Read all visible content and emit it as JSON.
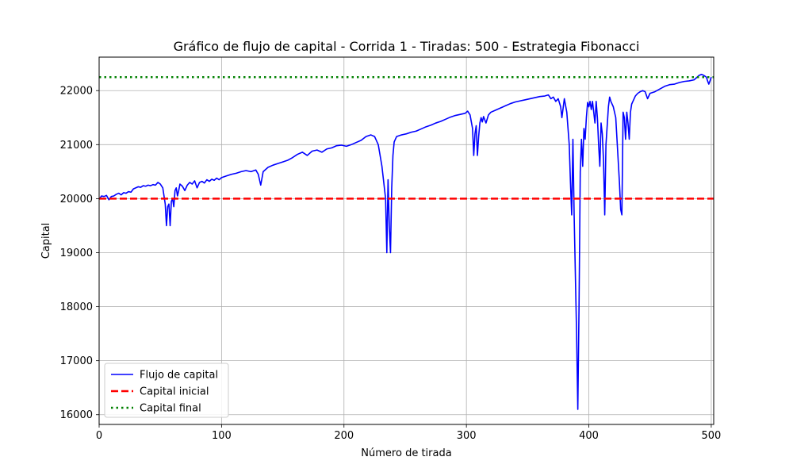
{
  "chart_data": {
    "type": "line",
    "title": "Gráfico de flujo de capital - Corrida 1 - Tiradas: 500 - Estrategia Fibonacci",
    "xlabel": "Número de tirada",
    "ylabel": "Capital",
    "xlim": [
      0,
      502
    ],
    "ylim": [
      15820,
      22620
    ],
    "xticks": [
      0,
      100,
      200,
      300,
      400,
      500
    ],
    "yticks": [
      16000,
      17000,
      18000,
      19000,
      20000,
      21000,
      22000
    ],
    "grid": true,
    "legend_position": "lower-left",
    "series": [
      {
        "name": "Flujo de capital",
        "color": "#0000ff",
        "style": "solid",
        "points": [
          [
            0,
            19990
          ],
          [
            2,
            20050
          ],
          [
            4,
            20040
          ],
          [
            6,
            20060
          ],
          [
            8,
            19980
          ],
          [
            10,
            20040
          ],
          [
            12,
            20050
          ],
          [
            14,
            20080
          ],
          [
            16,
            20100
          ],
          [
            18,
            20070
          ],
          [
            20,
            20110
          ],
          [
            22,
            20100
          ],
          [
            24,
            20130
          ],
          [
            26,
            20120
          ],
          [
            28,
            20180
          ],
          [
            30,
            20200
          ],
          [
            32,
            20220
          ],
          [
            34,
            20210
          ],
          [
            36,
            20240
          ],
          [
            38,
            20230
          ],
          [
            40,
            20250
          ],
          [
            42,
            20240
          ],
          [
            44,
            20260
          ],
          [
            46,
            20250
          ],
          [
            48,
            20300
          ],
          [
            50,
            20270
          ],
          [
            52,
            20200
          ],
          [
            54,
            19900
          ],
          [
            55,
            19500
          ],
          [
            56,
            19850
          ],
          [
            57,
            19900
          ],
          [
            58,
            19500
          ],
          [
            59,
            19950
          ],
          [
            60,
            20000
          ],
          [
            61,
            19850
          ],
          [
            62,
            20150
          ],
          [
            63,
            20200
          ],
          [
            64,
            20050
          ],
          [
            65,
            20150
          ],
          [
            66,
            20270
          ],
          [
            68,
            20230
          ],
          [
            70,
            20150
          ],
          [
            72,
            20250
          ],
          [
            74,
            20300
          ],
          [
            76,
            20270
          ],
          [
            78,
            20330
          ],
          [
            80,
            20200
          ],
          [
            82,
            20300
          ],
          [
            84,
            20320
          ],
          [
            86,
            20290
          ],
          [
            88,
            20350
          ],
          [
            90,
            20320
          ],
          [
            92,
            20360
          ],
          [
            94,
            20340
          ],
          [
            96,
            20380
          ],
          [
            98,
            20350
          ],
          [
            100,
            20390
          ],
          [
            104,
            20420
          ],
          [
            108,
            20450
          ],
          [
            112,
            20470
          ],
          [
            116,
            20500
          ],
          [
            120,
            20520
          ],
          [
            124,
            20500
          ],
          [
            128,
            20530
          ],
          [
            130,
            20450
          ],
          [
            132,
            20250
          ],
          [
            134,
            20500
          ],
          [
            138,
            20580
          ],
          [
            142,
            20620
          ],
          [
            146,
            20650
          ],
          [
            150,
            20680
          ],
          [
            154,
            20710
          ],
          [
            158,
            20760
          ],
          [
            162,
            20820
          ],
          [
            166,
            20860
          ],
          [
            170,
            20800
          ],
          [
            174,
            20880
          ],
          [
            178,
            20900
          ],
          [
            182,
            20860
          ],
          [
            186,
            20920
          ],
          [
            190,
            20940
          ],
          [
            194,
            20980
          ],
          [
            198,
            20990
          ],
          [
            202,
            20970
          ],
          [
            206,
            21000
          ],
          [
            210,
            21040
          ],
          [
            214,
            21080
          ],
          [
            218,
            21150
          ],
          [
            222,
            21180
          ],
          [
            225,
            21150
          ],
          [
            228,
            21000
          ],
          [
            231,
            20600
          ],
          [
            234,
            20000
          ],
          [
            235,
            19000
          ],
          [
            236,
            20350
          ],
          [
            237,
            19500
          ],
          [
            238,
            19000
          ],
          [
            239,
            20200
          ],
          [
            240,
            20800
          ],
          [
            241,
            21050
          ],
          [
            243,
            21150
          ],
          [
            247,
            21180
          ],
          [
            251,
            21200
          ],
          [
            255,
            21230
          ],
          [
            259,
            21250
          ],
          [
            263,
            21290
          ],
          [
            267,
            21330
          ],
          [
            271,
            21360
          ],
          [
            275,
            21400
          ],
          [
            279,
            21430
          ],
          [
            283,
            21470
          ],
          [
            287,
            21510
          ],
          [
            291,
            21540
          ],
          [
            295,
            21560
          ],
          [
            299,
            21580
          ],
          [
            301,
            21620
          ],
          [
            303,
            21550
          ],
          [
            305,
            21300
          ],
          [
            306,
            20800
          ],
          [
            307,
            21200
          ],
          [
            308,
            21350
          ],
          [
            309,
            20800
          ],
          [
            310,
            21150
          ],
          [
            311,
            21400
          ],
          [
            312,
            21500
          ],
          [
            313,
            21420
          ],
          [
            314,
            21520
          ],
          [
            316,
            21400
          ],
          [
            318,
            21550
          ],
          [
            320,
            21600
          ],
          [
            324,
            21640
          ],
          [
            328,
            21680
          ],
          [
            332,
            21720
          ],
          [
            336,
            21760
          ],
          [
            340,
            21790
          ],
          [
            344,
            21810
          ],
          [
            348,
            21830
          ],
          [
            352,
            21850
          ],
          [
            356,
            21870
          ],
          [
            360,
            21890
          ],
          [
            364,
            21900
          ],
          [
            367,
            21920
          ],
          [
            369,
            21850
          ],
          [
            371,
            21880
          ],
          [
            373,
            21800
          ],
          [
            375,
            21850
          ],
          [
            377,
            21700
          ],
          [
            378,
            21500
          ],
          [
            380,
            21850
          ],
          [
            382,
            21600
          ],
          [
            384,
            21000
          ],
          [
            385,
            20300
          ],
          [
            386,
            19700
          ],
          [
            387,
            21100
          ],
          [
            388,
            19700
          ],
          [
            390,
            17500
          ],
          [
            391,
            16100
          ],
          [
            392,
            18000
          ],
          [
            393,
            20500
          ],
          [
            394,
            21100
          ],
          [
            395,
            20600
          ],
          [
            396,
            21300
          ],
          [
            397,
            21100
          ],
          [
            398,
            21500
          ],
          [
            399,
            21780
          ],
          [
            400,
            21700
          ],
          [
            401,
            21800
          ],
          [
            402,
            21650
          ],
          [
            403,
            21800
          ],
          [
            404,
            21600
          ],
          [
            405,
            21400
          ],
          [
            406,
            21800
          ],
          [
            407,
            21500
          ],
          [
            408,
            21000
          ],
          [
            409,
            20600
          ],
          [
            410,
            21400
          ],
          [
            411,
            21200
          ],
          [
            412,
            20700
          ],
          [
            413,
            19700
          ],
          [
            414,
            21000
          ],
          [
            416,
            21700
          ],
          [
            417,
            21880
          ],
          [
            418,
            21800
          ],
          [
            420,
            21700
          ],
          [
            422,
            21500
          ],
          [
            423,
            21100
          ],
          [
            424,
            20700
          ],
          [
            425,
            20300
          ],
          [
            426,
            19800
          ],
          [
            427,
            19700
          ],
          [
            428,
            21600
          ],
          [
            429,
            21500
          ],
          [
            430,
            21100
          ],
          [
            431,
            21600
          ],
          [
            432,
            21400
          ],
          [
            433,
            21100
          ],
          [
            434,
            21600
          ],
          [
            435,
            21750
          ],
          [
            436,
            21800
          ],
          [
            438,
            21900
          ],
          [
            440,
            21950
          ],
          [
            442,
            21980
          ],
          [
            444,
            22000
          ],
          [
            446,
            21980
          ],
          [
            448,
            21850
          ],
          [
            450,
            21950
          ],
          [
            454,
            21980
          ],
          [
            458,
            22030
          ],
          [
            462,
            22080
          ],
          [
            466,
            22110
          ],
          [
            470,
            22120
          ],
          [
            474,
            22150
          ],
          [
            478,
            22170
          ],
          [
            482,
            22180
          ],
          [
            486,
            22200
          ],
          [
            488,
            22240
          ],
          [
            490,
            22280
          ],
          [
            492,
            22300
          ],
          [
            494,
            22280
          ],
          [
            496,
            22250
          ],
          [
            497,
            22180
          ],
          [
            498,
            22120
          ],
          [
            499,
            22180
          ],
          [
            500,
            22250
          ]
        ]
      },
      {
        "name": "Capital inicial",
        "color": "#ff0000",
        "style": "dashed",
        "points": [
          [
            0,
            20000
          ],
          [
            502,
            20000
          ]
        ]
      },
      {
        "name": "Capital final",
        "color": "#008000",
        "style": "dotted",
        "points": [
          [
            0,
            22250
          ],
          [
            502,
            22250
          ]
        ]
      }
    ]
  }
}
